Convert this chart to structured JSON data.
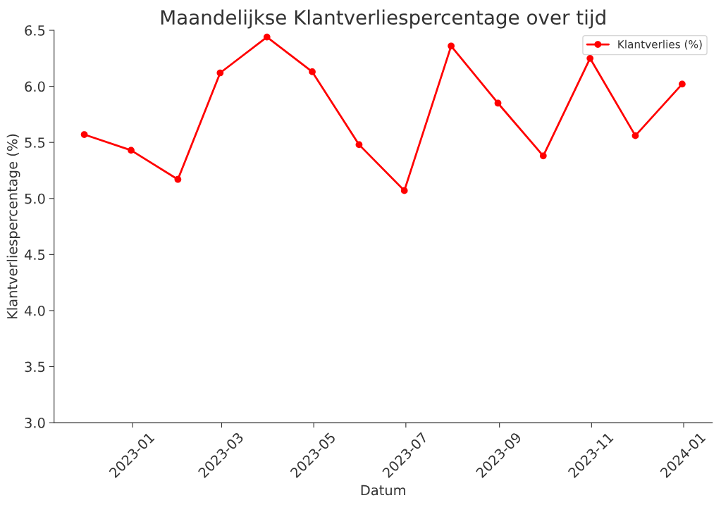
{
  "chart_data": {
    "type": "line",
    "title": "Maandelijkse Klantverliespercentage over tijd",
    "xlabel": "Datum",
    "ylabel": "Klantverliespercentage (%)",
    "x": [
      "2022-11-30",
      "2022-12-31",
      "2023-01-31",
      "2023-02-28",
      "2023-03-31",
      "2023-04-30",
      "2023-05-31",
      "2023-06-30",
      "2023-07-31",
      "2023-08-31",
      "2023-09-30",
      "2023-10-31",
      "2023-11-30",
      "2023-12-31"
    ],
    "series": [
      {
        "name": "Klantverlies (%)",
        "color": "#ff0000",
        "values": [
          5.57,
          5.43,
          5.17,
          6.12,
          6.44,
          6.13,
          5.48,
          5.07,
          6.36,
          5.85,
          5.38,
          6.25,
          5.56,
          6.02
        ]
      }
    ],
    "xlim": [
      "2022-11-10",
      "2024-01-20"
    ],
    "xticks": [
      "2023-01",
      "2023-03",
      "2023-05",
      "2023-07",
      "2023-09",
      "2023-11",
      "2024-01"
    ],
    "ylim": [
      3.0,
      6.5
    ],
    "yticks": [
      {
        "value": 3.0,
        "label": "3.0"
      },
      {
        "value": 3.5,
        "label": "3.5"
      },
      {
        "value": 4.0,
        "label": "4.0"
      },
      {
        "value": 4.5,
        "label": "4.5"
      },
      {
        "value": 5.0,
        "label": "5.0"
      },
      {
        "value": 5.5,
        "label": "5.5"
      },
      {
        "value": 6.0,
        "label": "6.0"
      },
      {
        "value": 6.5,
        "label": "6.5"
      }
    ],
    "marker": "circle",
    "line_style": "solid",
    "legend": "top right",
    "grid": false
  }
}
